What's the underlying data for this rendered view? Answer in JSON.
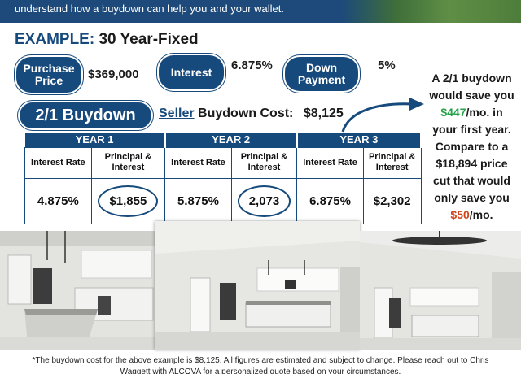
{
  "banner": {
    "text": "understand how a buydown can help you and your wallet."
  },
  "headline": {
    "label": "EXAMPLE:",
    "rest": "30 Year-Fixed"
  },
  "summary": {
    "purchase_label_1": "Purchase",
    "purchase_label_2": "Price",
    "purchase_value": "$369,000",
    "interest_label": "Interest",
    "interest_value": "6.875%",
    "down_label_1": "Down",
    "down_label_2": "Payment",
    "down_value": "5%"
  },
  "buydown": {
    "title": "2/1 Buydown",
    "seller_word": "Seller",
    "cost_label": "Buydown Cost:",
    "cost_value": "$8,125"
  },
  "table": {
    "years": [
      "YEAR 1",
      "YEAR 2",
      "YEAR 3"
    ],
    "col_interest": "Interest Rate",
    "col_principal_1": "Principal &",
    "col_principal_2": "Interest",
    "rows": [
      {
        "rate": "4.875%",
        "payment": "$1,855"
      },
      {
        "rate": "5.875%",
        "payment": "2,073"
      },
      {
        "rate": "6.875%",
        "payment": "$2,302"
      }
    ]
  },
  "sidebar": {
    "line1": "A 2/1 buydown",
    "line2": "would save you",
    "savings": "$447",
    "line3_suffix": "/mo. in",
    "line4": "your first year.",
    "line5": "Compare to a",
    "line6": "$18,894 price",
    "line7": "cut that would",
    "line8": "only save you",
    "alt_savings": "$50",
    "line9_suffix": "/mo."
  },
  "footer": {
    "line1": "*The buydown cost for the above example is $8,125. All figures are estimated and subject to change.  Please reach out to Chris",
    "line2": "Waggett with ALCOVA for a personalized quote based on your circumstances."
  },
  "colors": {
    "navy": "#16497c",
    "green": "#27a24a",
    "red": "#d0461b"
  }
}
